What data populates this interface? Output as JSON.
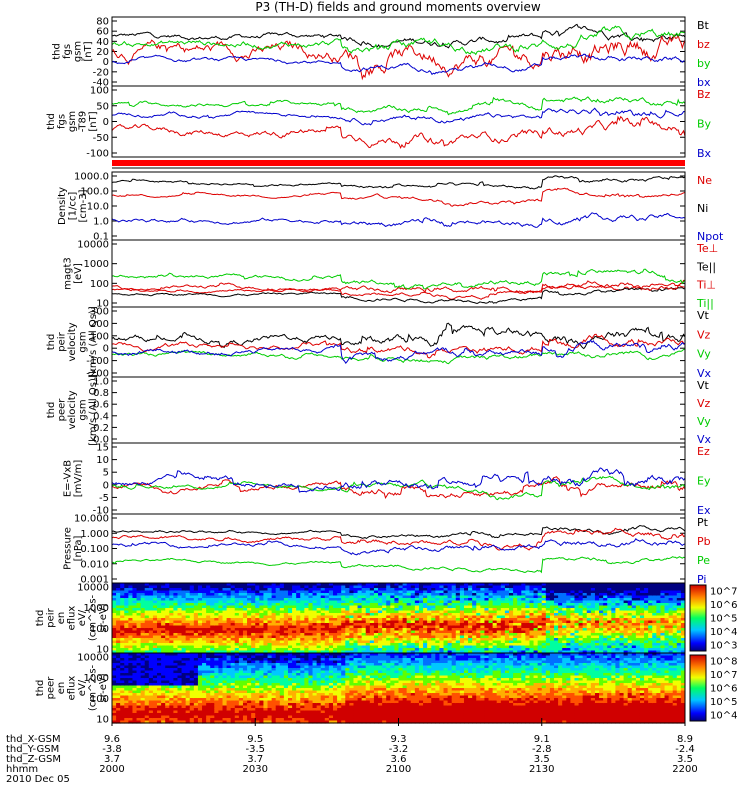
{
  "chart_data": {
    "type": "line",
    "title": "P3 (TH-D) fields and ground moments overview",
    "colorbar_labels": [
      "10^7",
      "10^6",
      "10^5",
      "10^4",
      "10^3",
      "10^8",
      "10^7",
      "10^6",
      "10^5",
      "10^4"
    ],
    "panels": [
      {
        "id": "fgs_gsm",
        "ylabel": [
          "thd",
          "fgs",
          "gsm",
          "[nT]"
        ],
        "yticks": [
          "80",
          "60",
          "40",
          "20",
          "0",
          "-20",
          "-40"
        ],
        "series": [
          {
            "name": "Bt",
            "color": "#000000"
          },
          {
            "name": "bz",
            "color": "#dd0000"
          },
          {
            "name": "by",
            "color": "#00cc00"
          },
          {
            "name": "bx",
            "color": "#0000cc"
          }
        ]
      },
      {
        "id": "t89",
        "ylabel": [
          "thd",
          "fgs",
          "gsm",
          "-T89",
          "[nT]"
        ],
        "yticks": [
          "100",
          "50",
          "0",
          "-50",
          "-100"
        ],
        "series": [
          {
            "name": "Bz",
            "color": "#dd0000"
          },
          {
            "name": "By",
            "color": "#00cc00"
          },
          {
            "name": "Bx",
            "color": "#0000cc"
          }
        ]
      },
      {
        "id": "density",
        "ylabel": [
          "Density",
          "[1/cc]",
          "[cm-3]"
        ],
        "yticks": [
          "1000.0",
          "100.0",
          "10.0",
          "1.0",
          "0.1"
        ],
        "series": [
          {
            "name": "Ne",
            "color": "#dd0000"
          },
          {
            "name": "Ni",
            "color": "#000000"
          },
          {
            "name": "Npot",
            "color": "#0000cc"
          }
        ]
      },
      {
        "id": "temp",
        "ylabel": [
          "magt3",
          "[eV]"
        ],
        "yticks": [
          "10000",
          "1000",
          "100",
          "10"
        ],
        "series": [
          {
            "name": "Te⊥",
            "color": "#dd0000"
          },
          {
            "name": "Te||",
            "color": "#000000"
          },
          {
            "name": "Ti⊥",
            "color": "#dd0000"
          },
          {
            "name": "Ti||",
            "color": "#00cc00"
          }
        ]
      },
      {
        "id": "peir_vel",
        "ylabel": [
          "thd",
          "peir",
          "velocity",
          "gsm",
          "[km/s (All Qs)]"
        ],
        "yticks": [
          "300",
          "200",
          "100",
          "0",
          "-100",
          "-200"
        ],
        "series": [
          {
            "name": "Vt",
            "color": "#000000"
          },
          {
            "name": "Vz",
            "color": "#dd0000"
          },
          {
            "name": "Vy",
            "color": "#00cc00"
          },
          {
            "name": "Vx",
            "color": "#0000cc"
          }
        ]
      },
      {
        "id": "peer_vel",
        "ylabel": [
          "thd",
          "peer",
          "velocity",
          "gsm",
          "[km/s (All Qs)]"
        ],
        "yticks": [
          "1.0",
          "0.8",
          "0.6",
          "0.4",
          "0.2",
          "0.0"
        ],
        "series": [
          {
            "name": "Vt",
            "color": "#000000"
          },
          {
            "name": "Vz",
            "color": "#dd0000"
          },
          {
            "name": "Vy",
            "color": "#00cc00"
          },
          {
            "name": "Vx",
            "color": "#0000cc"
          }
        ]
      },
      {
        "id": "efield",
        "ylabel": [
          "E=-VxB",
          "[mV/m]"
        ],
        "yticks": [
          "15",
          "10",
          "5",
          "0",
          "-5",
          "-10"
        ],
        "series": [
          {
            "name": "Ez",
            "color": "#dd0000"
          },
          {
            "name": "Ey",
            "color": "#00cc00"
          },
          {
            "name": "Ex",
            "color": "#0000cc"
          }
        ]
      },
      {
        "id": "pressure",
        "ylabel": [
          "Pressure",
          "[nPa]"
        ],
        "yticks": [
          "10.000",
          "1.000",
          "0.100",
          "0.010",
          "0.001"
        ],
        "series": [
          {
            "name": "Pt",
            "color": "#000000"
          },
          {
            "name": "Pb",
            "color": "#dd0000"
          },
          {
            "name": "Pe",
            "color": "#00cc00"
          },
          {
            "name": "Pi",
            "color": "#0000cc"
          }
        ]
      },
      {
        "id": "peir_spec",
        "ylabel": [
          "thd",
          "peir",
          "en",
          "eflux",
          "eV/",
          "(cm^2-s-",
          "sr-eV)"
        ],
        "yticks": [
          "10000",
          "1000",
          "100",
          "10"
        ]
      },
      {
        "id": "peer_spec",
        "ylabel": [
          "thd",
          "peer",
          "en",
          "eflux",
          "eV/",
          "(cm^2-s-",
          "sr-eV)"
        ],
        "yticks": [
          "10000",
          "1000",
          "100",
          "10"
        ]
      }
    ],
    "xaxis": {
      "row_labels": [
        "thd_X-GSM",
        "thd_Y-GSM",
        "thd_Z-GSM",
        "hhmm",
        "2010 Dec 05"
      ],
      "columns": [
        {
          "x": "9.6",
          "y": "-3.8",
          "z": "3.7",
          "t": "2000"
        },
        {
          "x": "9.5",
          "y": "-3.5",
          "z": "3.7",
          "t": "2030"
        },
        {
          "x": "9.3",
          "y": "-3.2",
          "z": "3.6",
          "t": "2100"
        },
        {
          "x": "9.1",
          "y": "-2.8",
          "z": "3.5",
          "t": "2130"
        },
        {
          "x": "8.9",
          "y": "-2.4",
          "z": "3.5",
          "t": "2200"
        }
      ]
    }
  }
}
